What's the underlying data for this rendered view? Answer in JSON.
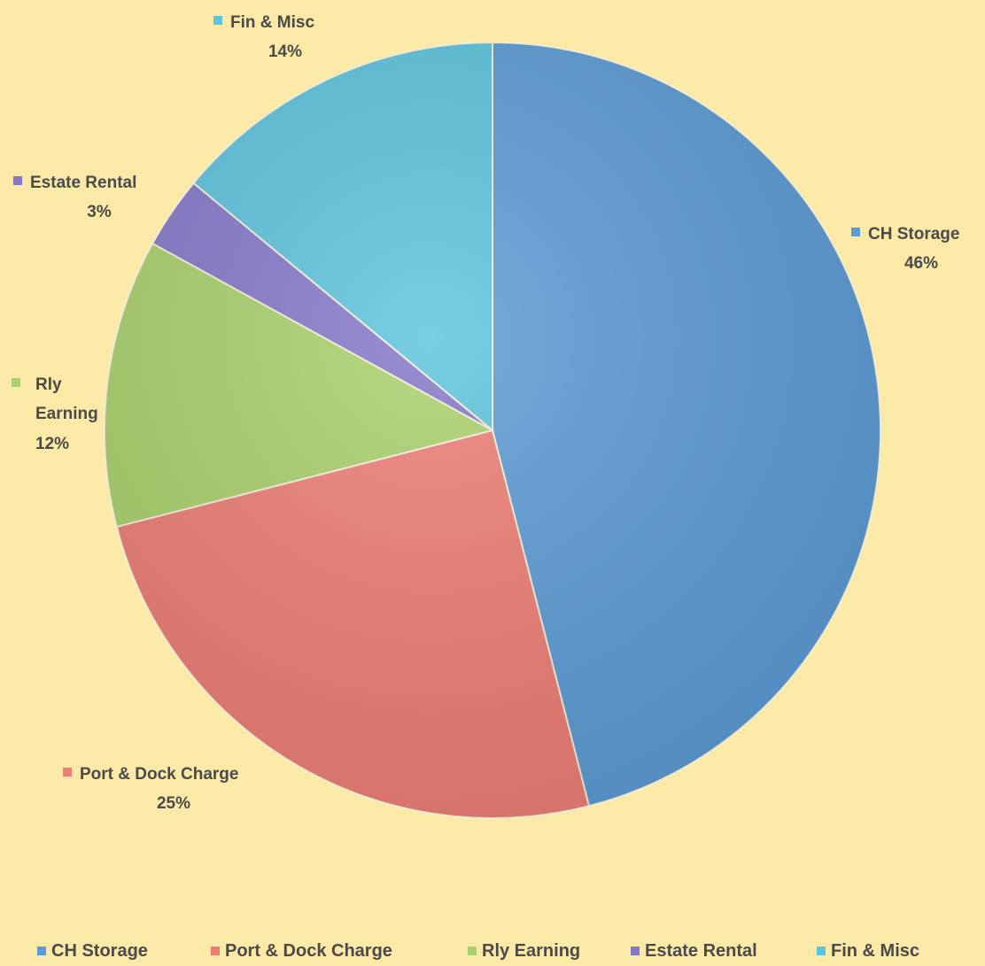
{
  "chart_data": {
    "type": "pie",
    "title": "",
    "start_angle_deg": 0,
    "direction": "clockwise",
    "slices": [
      {
        "label": "CH Storage",
        "value": 46,
        "value_label": "46%",
        "color": "#5b9bd5"
      },
      {
        "label": "Port & Dock Charge",
        "value": 25,
        "value_label": "25%",
        "color": "#ed7d74"
      },
      {
        "label": "Rly Earning",
        "value": 12,
        "value_label": "12%",
        "color": "#a9d06a"
      },
      {
        "label": "Estate Rental",
        "value": 3,
        "value_label": "3%",
        "color": "#8476c9"
      },
      {
        "label": "Fin & Misc",
        "value": 14,
        "value_label": "14%",
        "color": "#5bc3dc"
      }
    ],
    "legend": {
      "position": "bottom",
      "items": [
        "CH Storage",
        "Port & Dock Charge",
        "Rly Earning",
        "Estate Rental",
        "Fin & Misc"
      ]
    }
  }
}
